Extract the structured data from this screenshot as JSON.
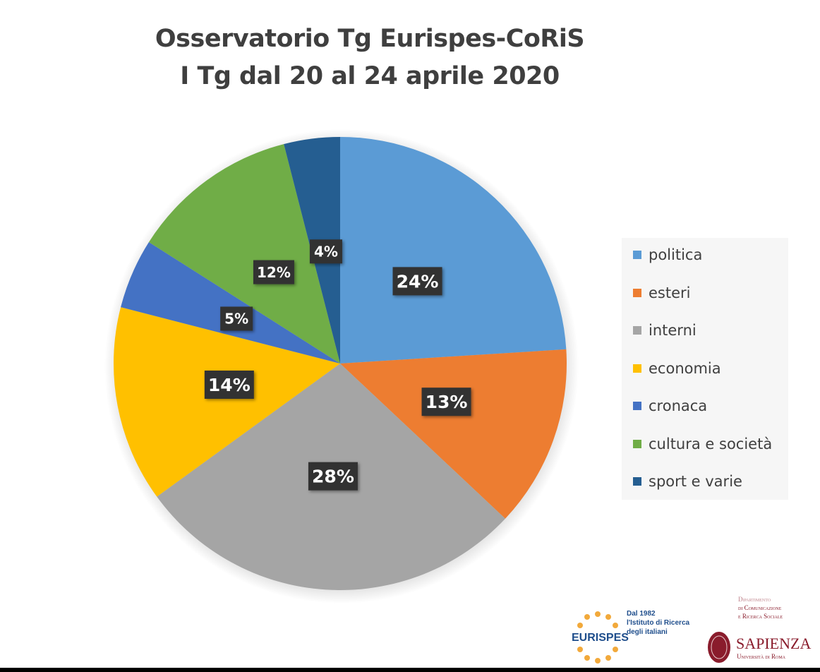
{
  "chart_data": {
    "type": "pie",
    "title": [
      "Osservatorio Tg Eurispes-CoRiS",
      "I Tg dal 20 al 24 aprile 2020"
    ],
    "categories": [
      "politica",
      "esteri",
      "interni",
      "economia",
      "cronaca",
      "cultura e società",
      "sport e varie"
    ],
    "values": [
      24,
      13,
      28,
      14,
      5,
      12,
      4
    ],
    "labels": [
      "24%",
      "13%",
      "28%",
      "14%",
      "5%",
      "12%",
      "4%"
    ],
    "colors": [
      "#5b9bd5",
      "#ed7d31",
      "#a5a5a5",
      "#ffc000",
      "#4472c4",
      "#70ad47",
      "#255e91"
    ],
    "start": "12 o'clock, clockwise",
    "legend_position": "right"
  },
  "logos": {
    "eurispes": {
      "name": "EURISPES",
      "tagline": [
        "Dal 1982",
        "l'Istituto di Ricerca",
        "degli italiani"
      ]
    },
    "sapienza": {
      "dept": [
        "Dipartimento",
        "di Comunicazione",
        "e Ricerca Sociale"
      ],
      "name": "SAPIENZA",
      "sub": "Università di Roma"
    }
  }
}
